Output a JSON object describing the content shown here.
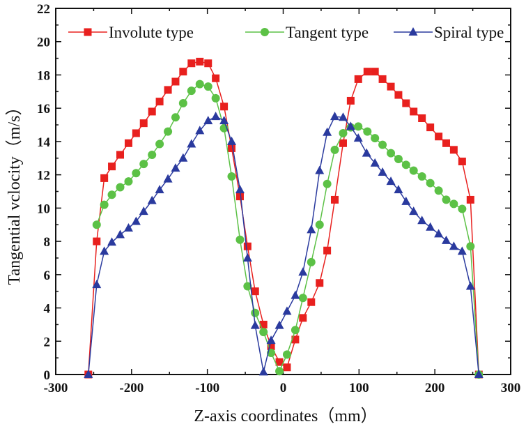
{
  "chart_data": {
    "type": "line",
    "xlabel": "Z-axis coordinates（mm）",
    "ylabel": "Tangential vclocity（m/s）",
    "xlim": [
      -300,
      300
    ],
    "ylim": [
      0,
      22
    ],
    "xticks": [
      "-300",
      "-200",
      "-100",
      "0",
      "100",
      "200",
      "300"
    ],
    "yticks": [
      "0",
      "2",
      "4",
      "6",
      "8",
      "10",
      "12",
      "14",
      "16",
      "18",
      "20",
      "22"
    ],
    "grid": false,
    "legend_position": "top",
    "series": [
      {
        "name": "Involute type",
        "color": "#e8201e",
        "marker": "square",
        "x": [
          -257,
          -246,
          -236,
          -226,
          -215,
          -204,
          -194,
          -184,
          -173,
          -163,
          -152,
          -142,
          -132,
          -121,
          -110,
          -99,
          -89,
          -78,
          -68,
          -57,
          -47,
          -37,
          -26,
          -16,
          -5,
          5,
          16,
          26,
          37,
          48,
          58,
          68,
          79,
          89,
          99,
          111,
          121,
          131,
          142,
          152,
          162,
          172,
          183,
          194,
          205,
          215,
          225,
          236,
          247,
          258
        ],
        "y": [
          0,
          8.0,
          11.8,
          12.5,
          13.2,
          13.9,
          14.5,
          15.1,
          15.8,
          16.4,
          17.1,
          17.6,
          18.2,
          18.7,
          18.8,
          18.7,
          17.8,
          16.1,
          13.6,
          10.7,
          7.7,
          5.0,
          3.0,
          1.7,
          0.75,
          0.43,
          2.1,
          3.4,
          4.35,
          5.5,
          7.45,
          10.5,
          13.9,
          16.45,
          17.75,
          18.2,
          18.2,
          17.75,
          17.3,
          16.8,
          16.3,
          15.8,
          15.4,
          14.85,
          14.3,
          13.9,
          13.5,
          12.8,
          10.5,
          0
        ]
      },
      {
        "name": "Tangent type",
        "color": "#5cc146",
        "marker": "circle",
        "x": [
          -246,
          -236,
          -226,
          -215,
          -204,
          -194,
          -184,
          -173,
          -163,
          -152,
          -142,
          -132,
          -121,
          -110,
          -99,
          -89,
          -78,
          -68,
          -57,
          -47,
          -37,
          -26,
          -16,
          -5,
          5,
          16,
          26,
          37,
          48,
          58,
          68,
          79,
          89,
          99,
          111,
          121,
          131,
          142,
          152,
          162,
          172,
          183,
          194,
          205,
          215,
          225,
          236,
          247,
          258
        ],
        "y": [
          9.0,
          10.2,
          10.8,
          11.25,
          11.6,
          12.1,
          12.65,
          13.2,
          13.85,
          14.6,
          15.45,
          16.3,
          17.05,
          17.45,
          17.3,
          16.6,
          14.8,
          11.9,
          8.1,
          5.3,
          3.7,
          2.55,
          1.3,
          0.2,
          1.2,
          2.67,
          4.6,
          6.75,
          9.0,
          11.45,
          13.5,
          14.5,
          14.85,
          14.9,
          14.6,
          14.2,
          13.8,
          13.3,
          12.95,
          12.6,
          12.25,
          11.9,
          11.5,
          11.05,
          10.5,
          10.25,
          9.95,
          7.7,
          0
        ]
      },
      {
        "name": "Spiral type",
        "color": "#2a3a9e",
        "marker": "triangle",
        "x": [
          -257,
          -246,
          -236,
          -226,
          -215,
          -204,
          -194,
          -184,
          -173,
          -163,
          -152,
          -142,
          -132,
          -121,
          -110,
          -99,
          -89,
          -78,
          -68,
          -57,
          -47,
          -37,
          -26,
          -16,
          -5,
          5,
          16,
          26,
          37,
          48,
          58,
          68,
          79,
          89,
          99,
          110,
          121,
          131,
          142,
          152,
          162,
          172,
          183,
          194,
          205,
          215,
          225,
          236,
          247,
          258
        ],
        "y": [
          0,
          5.4,
          7.4,
          7.95,
          8.4,
          8.8,
          9.2,
          9.8,
          10.45,
          11.1,
          11.75,
          12.4,
          13.0,
          13.85,
          14.65,
          15.25,
          15.5,
          15.25,
          14.0,
          11.1,
          7.0,
          2.95,
          0.15,
          2.05,
          2.95,
          3.8,
          4.75,
          6.15,
          8.7,
          12.25,
          14.55,
          15.5,
          15.45,
          14.9,
          14.2,
          13.3,
          12.7,
          12.15,
          11.6,
          11.1,
          10.4,
          9.8,
          9.25,
          8.85,
          8.45,
          8.05,
          7.7,
          7.4,
          5.3,
          0
        ]
      }
    ]
  }
}
